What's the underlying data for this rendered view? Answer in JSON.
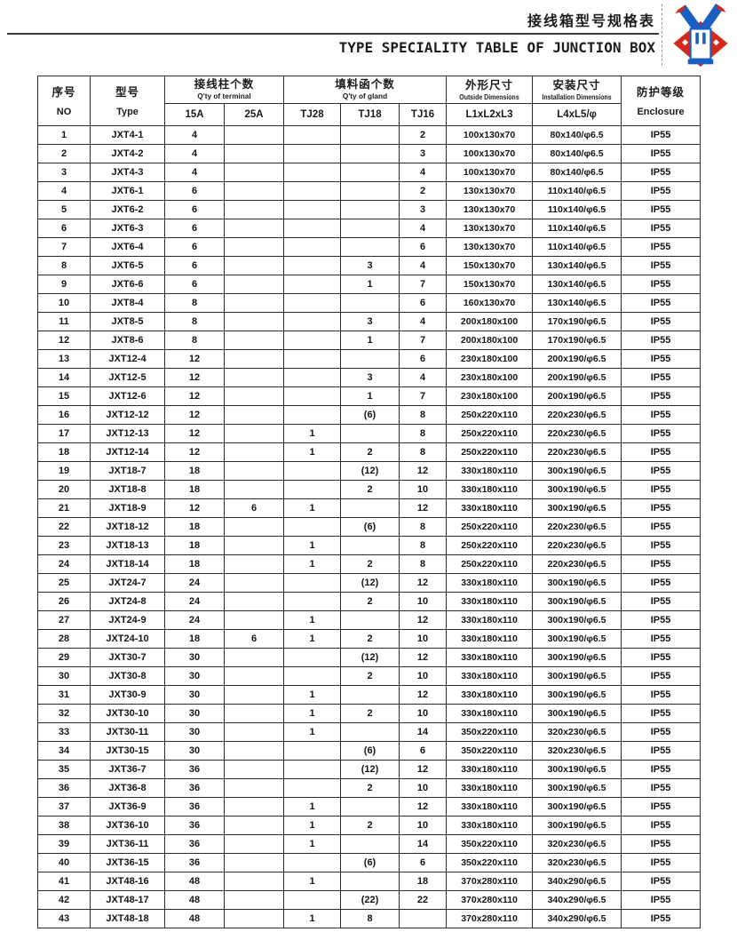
{
  "page": {
    "title_zh": "接线箱型号规格表",
    "title_en": "TYPE SPECIALITY TABLE OF JUNCTION BOX"
  },
  "logo": {
    "name": "company-emblem",
    "colors": {
      "red": "#d6281a",
      "blue": "#1b5fc2",
      "white": "#ffffff"
    }
  },
  "table": {
    "header": {
      "no_zh": "序号",
      "no_en": "NO",
      "type_zh": "型号",
      "type_en": "Type",
      "terminal_group_zh": "接线柱个数",
      "terminal_group_en": "Q'ty of terminal",
      "terminal_cols": [
        "15A",
        "25A"
      ],
      "gland_group_zh": "填料函个数",
      "gland_group_en": "Q'ty of gland",
      "gland_cols": [
        "TJ28",
        "TJ18",
        "TJ16"
      ],
      "outside_zh": "外形尺寸",
      "outside_en": "Outside Dimensions",
      "outside_formula": "L1xL2xL3",
      "install_zh": "安装尺寸",
      "install_en": "Installation Dimensions",
      "install_formula": "L4xL5/φ",
      "enclosure_zh": "防护等级",
      "enclosure_en": "Enclosure"
    },
    "col_keys": [
      "no",
      "type",
      "15a",
      "25a",
      "tj28",
      "tj18",
      "tj16",
      "outside-dim",
      "install-dim",
      "enclosure"
    ],
    "rows": [
      [
        "1",
        "JXT4-1",
        "4",
        "",
        "",
        "",
        "2",
        "100x130x70",
        "80x140/φ6.5",
        "IP55"
      ],
      [
        "2",
        "JXT4-2",
        "4",
        "",
        "",
        "",
        "3",
        "100x130x70",
        "80x140/φ6.5",
        "IP55"
      ],
      [
        "3",
        "JXT4-3",
        "4",
        "",
        "",
        "",
        "4",
        "100x130x70",
        "80x140/φ6.5",
        "IP55"
      ],
      [
        "4",
        "JXT6-1",
        "6",
        "",
        "",
        "",
        "2",
        "130x130x70",
        "110x140/φ6.5",
        "IP55"
      ],
      [
        "5",
        "JXT6-2",
        "6",
        "",
        "",
        "",
        "3",
        "130x130x70",
        "110x140/φ6.5",
        "IP55"
      ],
      [
        "6",
        "JXT6-3",
        "6",
        "",
        "",
        "",
        "4",
        "130x130x70",
        "110x140/φ6.5",
        "IP55"
      ],
      [
        "7",
        "JXT6-4",
        "6",
        "",
        "",
        "",
        "6",
        "130x130x70",
        "110x140/φ6.5",
        "IP55"
      ],
      [
        "8",
        "JXT6-5",
        "6",
        "",
        "",
        "3",
        "4",
        "150x130x70",
        "130x140/φ6.5",
        "IP55"
      ],
      [
        "9",
        "JXT6-6",
        "6",
        "",
        "",
        "1",
        "7",
        "150x130x70",
        "130x140/φ6.5",
        "IP55"
      ],
      [
        "10",
        "JXT8-4",
        "8",
        "",
        "",
        "",
        "6",
        "160x130x70",
        "130x140/φ6.5",
        "IP55"
      ],
      [
        "11",
        "JXT8-5",
        "8",
        "",
        "",
        "3",
        "4",
        "200x180x100",
        "170x190/φ6.5",
        "IP55"
      ],
      [
        "12",
        "JXT8-6",
        "8",
        "",
        "",
        "1",
        "7",
        "200x180x100",
        "170x190/φ6.5",
        "IP55"
      ],
      [
        "13",
        "JXT12-4",
        "12",
        "",
        "",
        "",
        "6",
        "230x180x100",
        "200x190/φ6.5",
        "IP55"
      ],
      [
        "14",
        "JXT12-5",
        "12",
        "",
        "",
        "3",
        "4",
        "230x180x100",
        "200x190/φ6.5",
        "IP55"
      ],
      [
        "15",
        "JXT12-6",
        "12",
        "",
        "",
        "1",
        "7",
        "230x180x100",
        "200x190/φ6.5",
        "IP55"
      ],
      [
        "16",
        "JXT12-12",
        "12",
        "",
        "",
        "(6)",
        "8",
        "250x220x110",
        "220x230/φ6.5",
        "IP55"
      ],
      [
        "17",
        "JXT12-13",
        "12",
        "",
        "1",
        "",
        "8",
        "250x220x110",
        "220x230/φ6.5",
        "IP55"
      ],
      [
        "18",
        "JXT12-14",
        "12",
        "",
        "1",
        "2",
        "8",
        "250x220x110",
        "220x230/φ6.5",
        "IP55"
      ],
      [
        "19",
        "JXT18-7",
        "18",
        "",
        "",
        "(12)",
        "12",
        "330x180x110",
        "300x190/φ6.5",
        "IP55"
      ],
      [
        "20",
        "JXT18-8",
        "18",
        "",
        "",
        "2",
        "10",
        "330x180x110",
        "300x190/φ6.5",
        "IP55"
      ],
      [
        "21",
        "JXT18-9",
        "12",
        "6",
        "1",
        "",
        "12",
        "330x180x110",
        "300x190/φ6.5",
        "IP55"
      ],
      [
        "22",
        "JXT18-12",
        "18",
        "",
        "",
        "(6)",
        "8",
        "250x220x110",
        "220x230/φ6.5",
        "IP55"
      ],
      [
        "23",
        "JXT18-13",
        "18",
        "",
        "1",
        "",
        "8",
        "250x220x110",
        "220x230/φ6.5",
        "IP55"
      ],
      [
        "24",
        "JXT18-14",
        "18",
        "",
        "1",
        "2",
        "8",
        "250x220x110",
        "220x230/φ6.5",
        "IP55"
      ],
      [
        "25",
        "JXT24-7",
        "24",
        "",
        "",
        "(12)",
        "12",
        "330x180x110",
        "300x190/φ6.5",
        "IP55"
      ],
      [
        "26",
        "JXT24-8",
        "24",
        "",
        "",
        "2",
        "10",
        "330x180x110",
        "300x190/φ6.5",
        "IP55"
      ],
      [
        "27",
        "JXT24-9",
        "24",
        "",
        "1",
        "",
        "12",
        "330x180x110",
        "300x190/φ6.5",
        "IP55"
      ],
      [
        "28",
        "JXT24-10",
        "18",
        "6",
        "1",
        "2",
        "10",
        "330x180x110",
        "300x190/φ6.5",
        "IP55"
      ],
      [
        "29",
        "JXT30-7",
        "30",
        "",
        "",
        "(12)",
        "12",
        "330x180x110",
        "300x190/φ6.5",
        "IP55"
      ],
      [
        "30",
        "JXT30-8",
        "30",
        "",
        "",
        "2",
        "10",
        "330x180x110",
        "300x190/φ6.5",
        "IP55"
      ],
      [
        "31",
        "JXT30-9",
        "30",
        "",
        "1",
        "",
        "12",
        "330x180x110",
        "300x190/φ6.5",
        "IP55"
      ],
      [
        "32",
        "JXT30-10",
        "30",
        "",
        "1",
        "2",
        "10",
        "330x180x110",
        "300x190/φ6.5",
        "IP55"
      ],
      [
        "33",
        "JXT30-11",
        "30",
        "",
        "1",
        "",
        "14",
        "350x220x110",
        "320x230/φ6.5",
        "IP55"
      ],
      [
        "34",
        "JXT30-15",
        "30",
        "",
        "",
        "(6)",
        "6",
        "350x220x110",
        "320x230/φ6.5",
        "IP55"
      ],
      [
        "35",
        "JXT36-7",
        "36",
        "",
        "",
        "(12)",
        "12",
        "330x180x110",
        "300x190/φ6.5",
        "IP55"
      ],
      [
        "36",
        "JXT36-8",
        "36",
        "",
        "",
        "2",
        "10",
        "330x180x110",
        "300x190/φ6.5",
        "IP55"
      ],
      [
        "37",
        "JXT36-9",
        "36",
        "",
        "1",
        "",
        "12",
        "330x180x110",
        "300x190/φ6.5",
        "IP55"
      ],
      [
        "38",
        "JXT36-10",
        "36",
        "",
        "1",
        "2",
        "10",
        "330x180x110",
        "300x190/φ6.5",
        "IP55"
      ],
      [
        "39",
        "JXT36-11",
        "36",
        "",
        "1",
        "",
        "14",
        "350x220x110",
        "320x230/φ6.5",
        "IP55"
      ],
      [
        "40",
        "JXT36-15",
        "36",
        "",
        "",
        "(6)",
        "6",
        "350x220x110",
        "320x230/φ6.5",
        "IP55"
      ],
      [
        "41",
        "JXT48-16",
        "48",
        "",
        "1",
        "",
        "18",
        "370x280x110",
        "340x290/φ6.5",
        "IP55"
      ],
      [
        "42",
        "JXT48-17",
        "48",
        "",
        "",
        "(22)",
        "22",
        "370x280x110",
        "340x290/φ6.5",
        "IP55"
      ],
      [
        "43",
        "JXT48-18",
        "48",
        "",
        "1",
        "8",
        "",
        "370x280x110",
        "340x290/φ6.5",
        "IP55"
      ]
    ]
  }
}
